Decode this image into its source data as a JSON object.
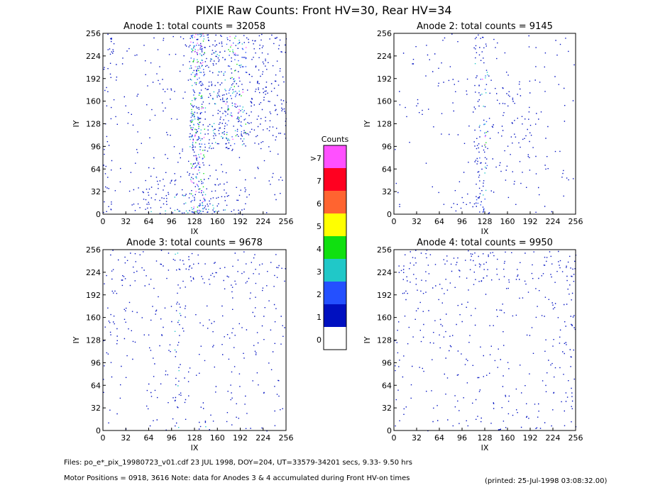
{
  "title": "PIXIE Raw Counts:  Front HV=30, Rear HV=34",
  "chart_data": [
    {
      "type": "heatmap",
      "title": "Anode 1: total counts = 32058",
      "xlabel": "IX",
      "ylabel": "IY",
      "xlim": [
        0,
        256
      ],
      "xticks": [
        0,
        32,
        64,
        96,
        128,
        160,
        192,
        224,
        256
      ],
      "ylim": [
        0,
        256
      ],
      "yticks": [
        0,
        32,
        64,
        96,
        128,
        160,
        192,
        224,
        256
      ]
    },
    {
      "type": "heatmap",
      "title": "Anode 2: total counts = 9145",
      "xlabel": "IX",
      "ylabel": "IY",
      "xlim": [
        0,
        256
      ],
      "xticks": [
        0,
        32,
        64,
        96,
        128,
        160,
        192,
        224,
        256
      ],
      "ylim": [
        0,
        256
      ],
      "yticks": [
        0,
        32,
        64,
        96,
        128,
        160,
        192,
        224,
        256
      ]
    },
    {
      "type": "heatmap",
      "title": "Anode 3: total counts = 9678",
      "xlabel": "IX",
      "ylabel": "IY",
      "xlim": [
        0,
        256
      ],
      "xticks": [
        0,
        32,
        64,
        96,
        128,
        160,
        192,
        224,
        256
      ],
      "ylim": [
        0,
        256
      ],
      "yticks": [
        0,
        32,
        64,
        96,
        128,
        160,
        192,
        224,
        256
      ]
    },
    {
      "type": "heatmap",
      "title": "Anode 4: total counts = 9950",
      "xlabel": "IX",
      "ylabel": "IY",
      "xlim": [
        0,
        256
      ],
      "xticks": [
        0,
        32,
        64,
        96,
        128,
        160,
        192,
        224,
        256
      ],
      "ylim": [
        0,
        256
      ],
      "yticks": [
        0,
        32,
        64,
        96,
        128,
        160,
        192,
        224,
        256
      ]
    }
  ],
  "colorbar": {
    "title": "Counts",
    "levels": [
      "0",
      "1",
      "2",
      "3",
      "4",
      "5",
      "6",
      "7",
      ">7"
    ],
    "colors": [
      "#ffffff",
      "#0010c0",
      "#2450ff",
      "#20c8c8",
      "#10e010",
      "#ffff00",
      "#ff6430",
      "#ff0020",
      "#ff50ff"
    ]
  },
  "footer": {
    "files": "Files: po_e*_pix_19980723_v01.cdf    23 JUL 1998, DOY=204, UT=33579-34201 secs,  9.33- 9.50 hrs",
    "motor": "Motor Positions = 0918, 3616    Note: data for Anodes 3 & 4 accumulated during Front HV-on times",
    "printed": "(printed: 25-Jul-1998 03:08:32.00)"
  }
}
